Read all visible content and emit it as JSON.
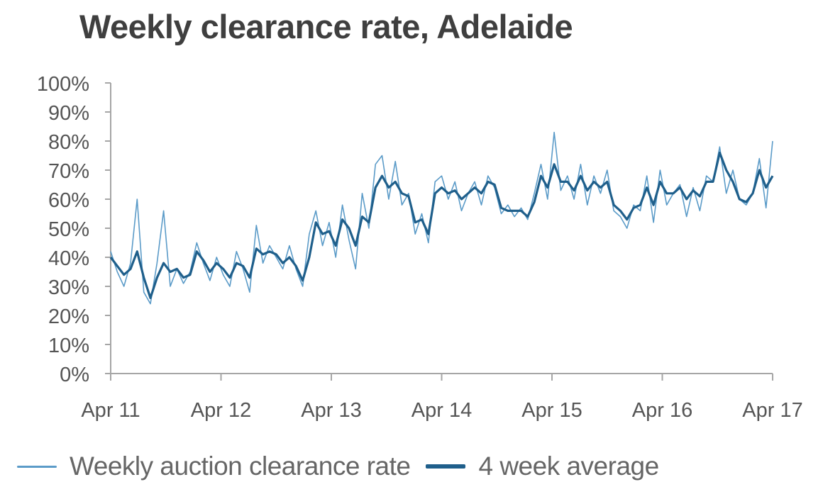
{
  "title": "Weekly clearance rate, Adelaide",
  "colors": {
    "weekly": "#5b9bc8",
    "average": "#1f5f8b",
    "axis": "#a6a6a6",
    "text": "#555555",
    "title": "#3f3f3f"
  },
  "legend": {
    "items": [
      {
        "label": "Weekly auction clearance rate",
        "style": "thin"
      },
      {
        "label": "4 week average",
        "style": "thick"
      }
    ]
  },
  "chart_data": {
    "type": "line",
    "title": "Weekly clearance rate, Adelaide",
    "xlabel": "",
    "ylabel": "",
    "ylim": [
      0,
      100
    ],
    "yticks": [
      "0%",
      "10%",
      "20%",
      "30%",
      "40%",
      "50%",
      "60%",
      "70%",
      "80%",
      "90%",
      "100%"
    ],
    "xticks": [
      "Apr 11",
      "Apr 12",
      "Apr 13",
      "Apr 14",
      "Apr 15",
      "Apr 16",
      "Apr 17"
    ],
    "grid": false,
    "legend_position": "bottom",
    "x_note": "values sampled approximately every ~4 weeks (13 per year) from Apr 11 to Apr 17",
    "series": [
      {
        "name": "Weekly auction clearance rate",
        "values": [
          42,
          35,
          30,
          38,
          60,
          28,
          24,
          38,
          56,
          30,
          36,
          31,
          35,
          45,
          38,
          32,
          40,
          34,
          30,
          42,
          36,
          28,
          51,
          38,
          44,
          40,
          36,
          44,
          36,
          30,
          48,
          56,
          44,
          52,
          40,
          58,
          46,
          36,
          62,
          50,
          72,
          75,
          60,
          73,
          58,
          62,
          48,
          55,
          45,
          66,
          68,
          60,
          66,
          56,
          62,
          66,
          58,
          68,
          64,
          55,
          58,
          54,
          57,
          53,
          62,
          72,
          60,
          83,
          63,
          68,
          60,
          72,
          58,
          68,
          62,
          70,
          56,
          54,
          50,
          58,
          56,
          68,
          52,
          70,
          58,
          62,
          65,
          54,
          64,
          56,
          68,
          66,
          78,
          62,
          70,
          60,
          58,
          62,
          74,
          57,
          80
        ]
      },
      {
        "name": "4 week average",
        "values": [
          40,
          37,
          34,
          36,
          42,
          33,
          26,
          33,
          38,
          35,
          36,
          33,
          34,
          42,
          39,
          35,
          38,
          36,
          33,
          38,
          37,
          33,
          43,
          41,
          42,
          41,
          38,
          40,
          37,
          32,
          40,
          52,
          48,
          49,
          44,
          53,
          50,
          44,
          54,
          52,
          64,
          68,
          64,
          66,
          62,
          61,
          52,
          53,
          48,
          62,
          64,
          62,
          63,
          60,
          62,
          64,
          62,
          66,
          65,
          57,
          56,
          56,
          56,
          54,
          59,
          68,
          64,
          72,
          66,
          66,
          63,
          68,
          63,
          66,
          64,
          66,
          58,
          56,
          53,
          57,
          58,
          64,
          58,
          66,
          62,
          62,
          64,
          60,
          63,
          61,
          66,
          66,
          76,
          70,
          66,
          60,
          59,
          62,
          70,
          64,
          68
        ]
      }
    ]
  }
}
